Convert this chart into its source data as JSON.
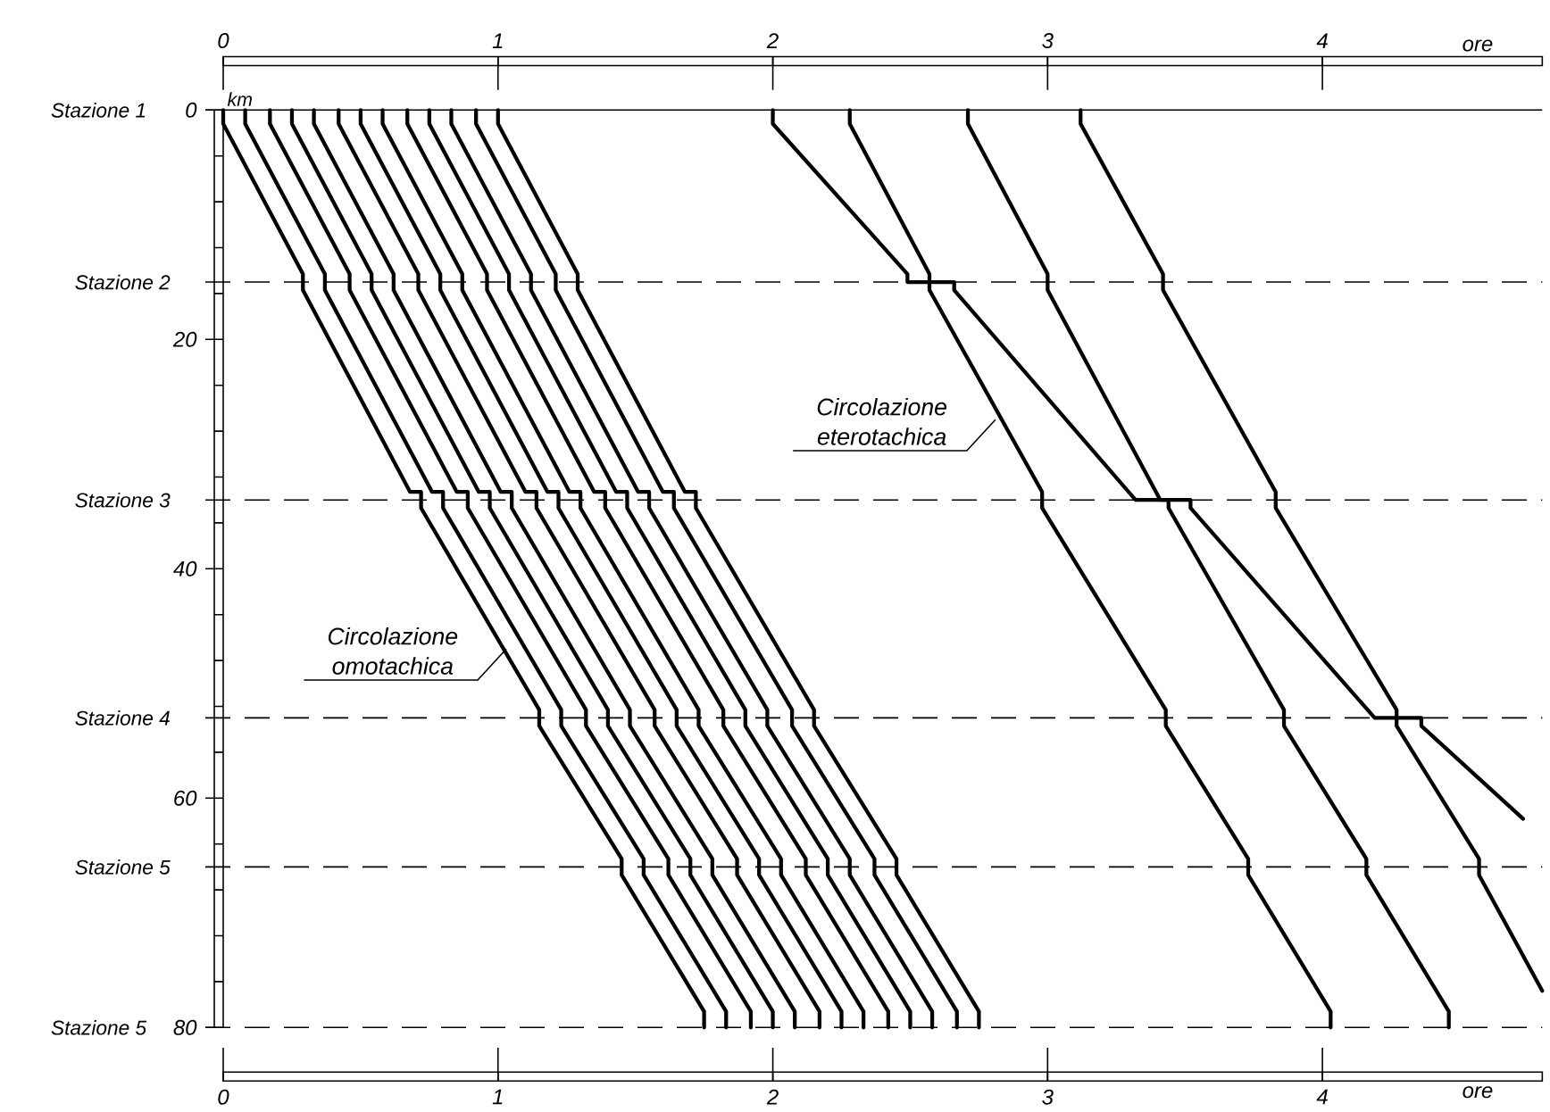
{
  "chart_data": {
    "type": "line",
    "xlim": [
      0,
      4.8
    ],
    "x2lim": [
      0,
      4.8
    ],
    "ylim": [
      80,
      0
    ],
    "xlabel": "ore",
    "x2label": "ore",
    "ylabel": "km",
    "xticks": [
      0,
      1,
      2,
      3,
      4
    ],
    "x2ticks": [
      0,
      1,
      2,
      3,
      4
    ],
    "yticks": [
      0,
      {
        "value": 4,
        "label": null
      },
      {
        "value": 8,
        "label": null
      },
      {
        "value": 12,
        "label": null
      },
      {
        "value": 16,
        "label": null
      },
      20,
      {
        "value": 24,
        "label": null
      },
      {
        "value": 28,
        "label": null
      },
      {
        "value": 32,
        "label": null
      },
      {
        "value": 36,
        "label": null
      },
      40,
      {
        "value": 44,
        "label": null
      },
      {
        "value": 48,
        "label": null
      },
      {
        "value": 52,
        "label": null
      },
      {
        "value": 56,
        "label": null
      },
      60,
      {
        "value": 64,
        "label": null
      },
      {
        "value": 68,
        "label": null
      },
      {
        "value": 72,
        "label": null
      },
      {
        "value": 76,
        "label": null
      },
      80
    ],
    "ref_lines": [
      {
        "axis": "y",
        "value": 0,
        "label": "Stazione 1",
        "line_style": "solid"
      },
      {
        "axis": "y",
        "value": 15,
        "label": "Stazione 2",
        "line_style": "dashed"
      },
      {
        "axis": "y",
        "value": 34,
        "label": "Stazione 3",
        "line_style": "dashed"
      },
      {
        "axis": "y",
        "value": 53,
        "label": "Stazione 4",
        "line_style": "dashed"
      },
      {
        "axis": "y",
        "value": 66,
        "label": "Stazione 5",
        "line_style": "dashed"
      },
      {
        "axis": "y",
        "value": 80,
        "label": "Stazione 5",
        "line_style": "dashed"
      }
    ],
    "annotations": [
      {
        "text": "Circolazione omotachica",
        "x": 1.03,
        "y": 47
      },
      {
        "text": "Circolazione eterotachica",
        "x": 2.81,
        "y": 27
      }
    ],
    "series": [
      {
        "color": "#000000",
        "x": [
          0,
          0,
          0.29,
          0.29,
          0.68,
          0.72,
          0.72,
          1.15,
          1.15,
          1.45,
          1.45,
          1.75,
          1.75
        ],
        "values": [
          0,
          1.2,
          14.3,
          15.7,
          33.3,
          33.3,
          34.7,
          52.3,
          53.7,
          65.3,
          66.7,
          78.6,
          80
        ]
      },
      {
        "color": "#000000",
        "x": [
          0.08,
          0.08,
          0.37,
          0.37,
          0.76,
          0.8,
          0.8,
          1.23,
          1.23,
          1.53,
          1.53,
          1.83,
          1.83
        ],
        "values": [
          0,
          1.2,
          14.3,
          15.7,
          33.3,
          33.3,
          34.7,
          52.3,
          53.7,
          65.3,
          66.7,
          78.6,
          80
        ]
      },
      {
        "color": "#000000",
        "x": [
          0.17,
          0.17,
          0.46,
          0.46,
          0.85,
          0.89,
          0.89,
          1.32,
          1.32,
          1.62,
          1.62,
          1.92,
          1.92
        ],
        "values": [
          0,
          1.2,
          14.3,
          15.7,
          33.3,
          33.3,
          34.7,
          52.3,
          53.7,
          65.3,
          66.7,
          78.6,
          80
        ]
      },
      {
        "color": "#000000",
        "x": [
          0.25,
          0.25,
          0.54,
          0.54,
          0.93,
          0.97,
          0.97,
          1.4,
          1.4,
          1.7,
          1.7,
          2,
          2
        ],
        "values": [
          0,
          1.2,
          14.3,
          15.7,
          33.3,
          33.3,
          34.7,
          52.3,
          53.7,
          65.3,
          66.7,
          78.6,
          80
        ]
      },
      {
        "color": "#000000",
        "x": [
          0.33,
          0.33,
          0.62,
          0.62,
          1.01,
          1.05,
          1.05,
          1.48,
          1.48,
          1.78,
          1.78,
          2.08,
          2.08
        ],
        "values": [
          0,
          1.2,
          14.3,
          15.7,
          33.3,
          33.3,
          34.7,
          52.3,
          53.7,
          65.3,
          66.7,
          78.6,
          80
        ]
      },
      {
        "color": "#000000",
        "x": [
          0.42,
          0.42,
          0.71,
          0.71,
          1.1,
          1.14,
          1.14,
          1.57,
          1.57,
          1.87,
          1.87,
          2.17,
          2.17
        ],
        "values": [
          0,
          1.2,
          14.3,
          15.7,
          33.3,
          33.3,
          34.7,
          52.3,
          53.7,
          65.3,
          66.7,
          78.6,
          80
        ]
      },
      {
        "color": "#000000",
        "x": [
          0.5,
          0.5,
          0.79,
          0.79,
          1.18,
          1.22,
          1.22,
          1.65,
          1.65,
          1.95,
          1.95,
          2.25,
          2.25
        ],
        "values": [
          0,
          1.2,
          14.3,
          15.7,
          33.3,
          33.3,
          34.7,
          52.3,
          53.7,
          65.3,
          66.7,
          78.6,
          80
        ]
      },
      {
        "color": "#000000",
        "x": [
          0.58,
          0.58,
          0.87,
          0.87,
          1.26,
          1.3,
          1.3,
          1.73,
          1.73,
          2.03,
          2.03,
          2.33,
          2.33
        ],
        "values": [
          0,
          1.2,
          14.3,
          15.7,
          33.3,
          33.3,
          34.7,
          52.3,
          53.7,
          65.3,
          66.7,
          78.6,
          80
        ]
      },
      {
        "color": "#000000",
        "x": [
          0.67,
          0.67,
          0.96,
          0.96,
          1.35,
          1.39,
          1.39,
          1.82,
          1.82,
          2.12,
          2.12,
          2.42,
          2.42
        ],
        "values": [
          0,
          1.2,
          14.3,
          15.7,
          33.3,
          33.3,
          34.7,
          52.3,
          53.7,
          65.3,
          66.7,
          78.6,
          80
        ]
      },
      {
        "color": "#000000",
        "x": [
          0.75,
          0.75,
          1.04,
          1.04,
          1.43,
          1.47,
          1.47,
          1.9,
          1.9,
          2.2,
          2.2,
          2.5,
          2.5
        ],
        "values": [
          0,
          1.2,
          14.3,
          15.7,
          33.3,
          33.3,
          34.7,
          52.3,
          53.7,
          65.3,
          66.7,
          78.6,
          80
        ]
      },
      {
        "color": "#000000",
        "x": [
          0.83,
          0.83,
          1.12,
          1.12,
          1.51,
          1.55,
          1.55,
          1.98,
          1.98,
          2.28,
          2.28,
          2.58,
          2.58
        ],
        "values": [
          0,
          1.2,
          14.3,
          15.7,
          33.3,
          33.3,
          34.7,
          52.3,
          53.7,
          65.3,
          66.7,
          78.6,
          80
        ]
      },
      {
        "color": "#000000",
        "x": [
          0.92,
          0.92,
          1.21,
          1.21,
          1.6,
          1.64,
          1.64,
          2.07,
          2.07,
          2.37,
          2.37,
          2.67,
          2.67
        ],
        "values": [
          0,
          1.2,
          14.3,
          15.7,
          33.3,
          33.3,
          34.7,
          52.3,
          53.7,
          65.3,
          66.7,
          78.6,
          80
        ]
      },
      {
        "color": "#000000",
        "x": [
          1,
          1,
          1.29,
          1.29,
          1.68,
          1.72,
          1.72,
          2.15,
          2.15,
          2.45,
          2.45,
          2.75,
          2.75
        ],
        "values": [
          0,
          1.2,
          14.3,
          15.7,
          33.3,
          33.3,
          34.7,
          52.3,
          53.7,
          65.3,
          66.7,
          78.6,
          80
        ]
      },
      {
        "color": "#000000",
        "x": [
          2,
          2,
          2.49,
          2.49,
          2.66,
          2.66,
          3.32,
          3.52,
          3.52,
          4.19,
          4.36,
          4.36,
          4.73
        ],
        "values": [
          0,
          1.2,
          14.3,
          15,
          15,
          15.7,
          34,
          34,
          34.7,
          53,
          53,
          53.7,
          61.8
        ]
      },
      {
        "color": "#000000",
        "x": [
          2.28,
          2.28,
          2.57,
          2.57,
          2.98,
          2.98,
          3.43,
          3.43,
          3.73,
          3.73,
          4.03,
          4.03
        ],
        "values": [
          0,
          1.2,
          14.3,
          15.7,
          33.3,
          34.7,
          52.3,
          53.7,
          65.3,
          66.7,
          78.6,
          80
        ]
      },
      {
        "color": "#000000",
        "x": [
          2.71,
          2.71,
          3,
          3,
          3.41,
          3.44,
          3.44,
          3.86,
          3.86,
          4.16,
          4.16,
          4.46,
          4.46
        ],
        "values": [
          0,
          1.2,
          14.3,
          15.7,
          34,
          34,
          34.7,
          52.3,
          53.7,
          65.3,
          66.7,
          78.6,
          80
        ]
      },
      {
        "color": "#000000",
        "x": [
          3.12,
          3.12,
          3.42,
          3.42,
          3.83,
          3.83,
          4.27,
          4.27,
          4.57,
          4.57,
          4.8
        ],
        "values": [
          0,
          1.2,
          14.3,
          15.7,
          33.3,
          34.7,
          52.3,
          53.7,
          65.3,
          66.7,
          76.8
        ]
      }
    ]
  }
}
